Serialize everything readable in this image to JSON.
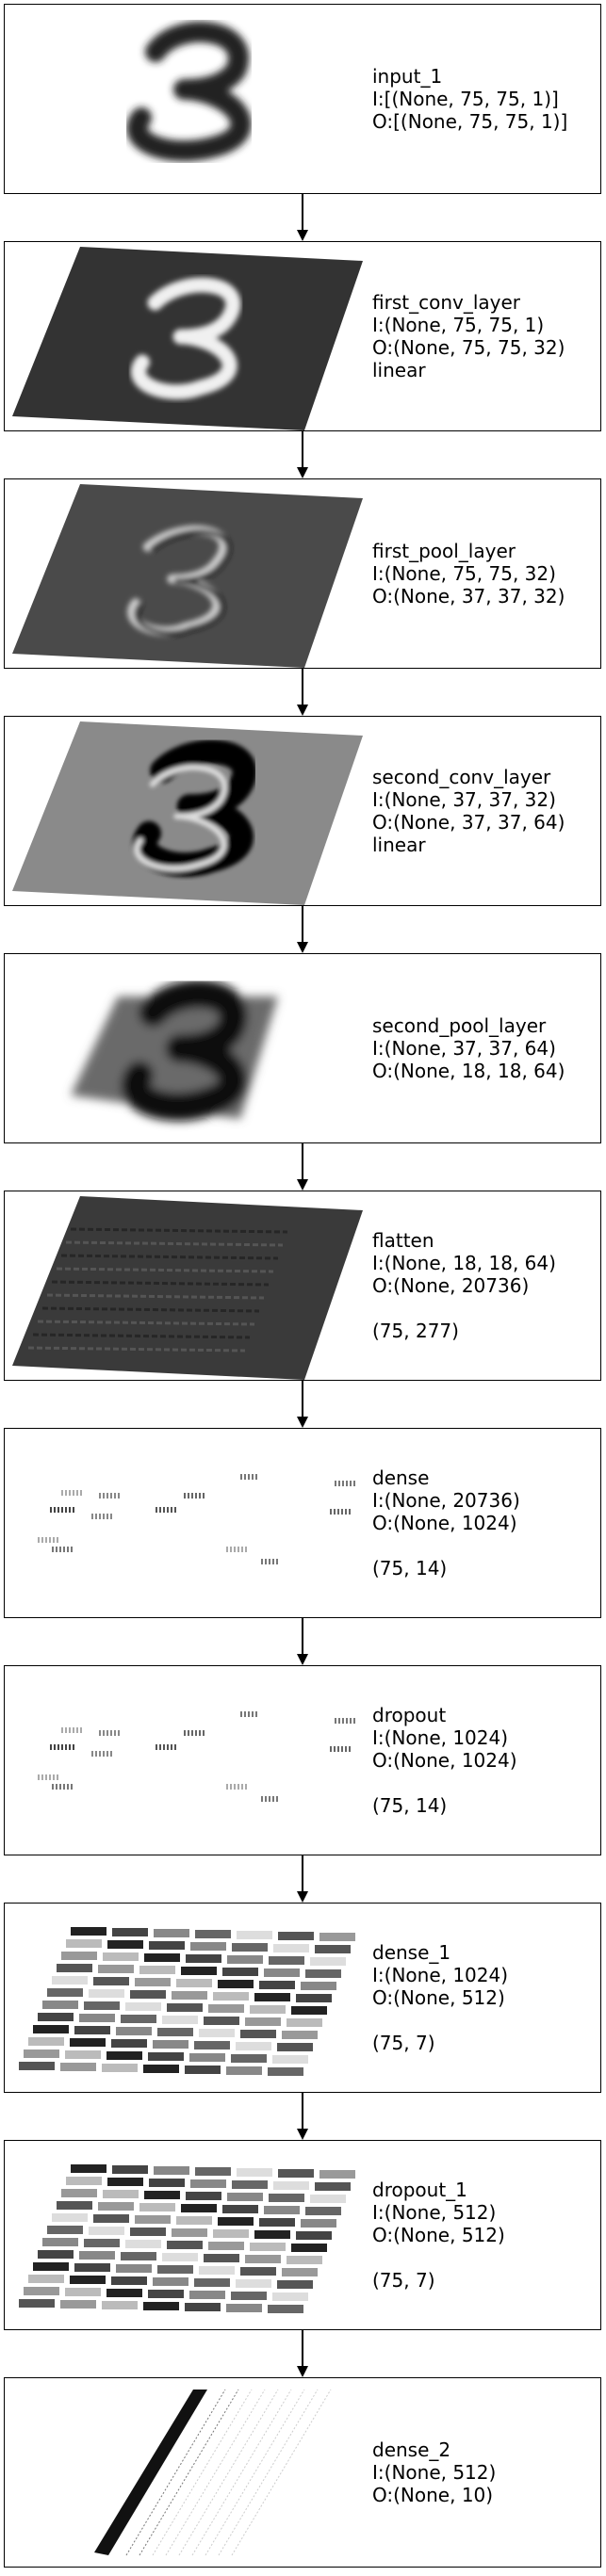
{
  "layers": [
    {
      "name": "input_1",
      "input": "I:[(None, 75, 75, 1)]",
      "output": "O:[(None, 75, 75, 1)]",
      "activation": "",
      "shape": ""
    },
    {
      "name": "first_conv_layer",
      "input": "I:(None, 75, 75, 1)",
      "output": "O:(None, 75, 75, 32)",
      "activation": "linear",
      "shape": ""
    },
    {
      "name": "first_pool_layer",
      "input": "I:(None, 75, 75, 32)",
      "output": "O:(None, 37, 37, 32)",
      "activation": "",
      "shape": ""
    },
    {
      "name": "second_conv_layer",
      "input": "I:(None, 37, 37, 32)",
      "output": "O:(None, 37, 37, 64)",
      "activation": "linear",
      "shape": ""
    },
    {
      "name": "second_pool_layer",
      "input": "I:(None, 37, 37, 64)",
      "output": "O:(None, 18, 18, 64)",
      "activation": "",
      "shape": ""
    },
    {
      "name": "flatten",
      "input": "I:(None, 18, 18, 64)",
      "output": "O:(None, 20736)",
      "activation": "",
      "shape": "(75, 277)"
    },
    {
      "name": "dense",
      "input": "I:(None, 20736)",
      "output": "O:(None, 1024)",
      "activation": "",
      "shape": "(75, 14)"
    },
    {
      "name": "dropout",
      "input": "I:(None, 1024)",
      "output": "O:(None, 1024)",
      "activation": "",
      "shape": "(75, 14)"
    },
    {
      "name": "dense_1",
      "input": "I:(None, 1024)",
      "output": "O:(None, 512)",
      "activation": "",
      "shape": "(75, 7)"
    },
    {
      "name": "dropout_1",
      "input": "I:(None, 512)",
      "output": "O:(None, 512)",
      "activation": "",
      "shape": "(75, 7)"
    },
    {
      "name": "dense_2",
      "input": "I:(None, 512)",
      "output": "O:(None, 10)",
      "activation": "",
      "shape": ""
    }
  ],
  "colors": {
    "border": "#000000",
    "dark": "#222222",
    "mid": "#555555",
    "light": "#999999",
    "white": "#ffffff"
  }
}
